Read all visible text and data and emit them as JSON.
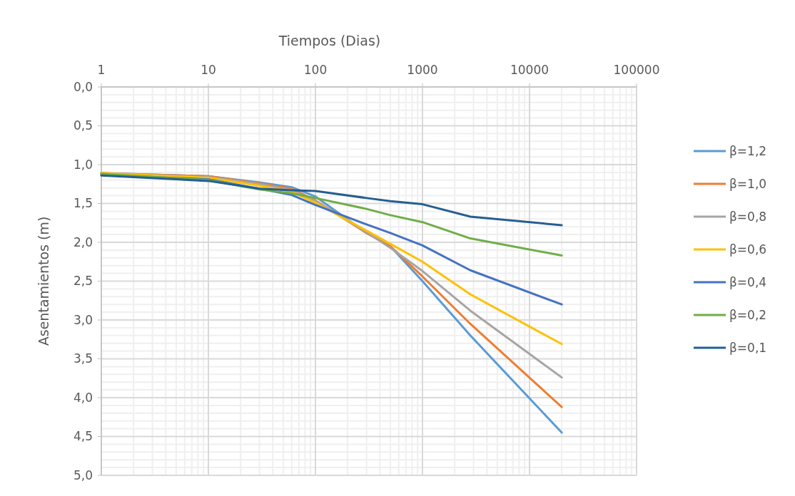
{
  "chart_data": {
    "type": "line",
    "xlabel": "Tiempos (Dias)",
    "ylabel": "Asentamientos (m)",
    "log": "x",
    "grid": true,
    "legend": "right",
    "line_style": "solid",
    "marker": "none",
    "xlim": [
      1,
      100000
    ],
    "xticks": [
      1,
      10,
      100,
      1000,
      10000,
      100000
    ],
    "ylim": [
      5,
      0
    ],
    "yticks": [
      {
        "value": 0,
        "label": "0,0"
      },
      {
        "value": 0.5,
        "label": "0,5"
      },
      {
        "value": 1,
        "label": "1,0"
      },
      {
        "value": 1.5,
        "label": "1,5"
      },
      {
        "value": 2,
        "label": "2,0"
      },
      {
        "value": 2.5,
        "label": "2,5"
      },
      {
        "value": 3,
        "label": "3,0"
      },
      {
        "value": 3.5,
        "label": "3,5"
      },
      {
        "value": 4,
        "label": "4,0"
      },
      {
        "value": 4.5,
        "label": "4,5"
      },
      {
        "value": 5,
        "label": "5,0"
      }
    ],
    "x": [
      1,
      10,
      30,
      60,
      100,
      300,
      500,
      1000,
      2800,
      20000
    ],
    "series": [
      {
        "name": "β=1,2",
        "color": "#5b9bd5",
        "values": [
          1.11,
          1.15,
          1.23,
          1.29,
          1.41,
          1.88,
          2.05,
          2.5,
          3.2,
          4.45
        ]
      },
      {
        "name": "β=1,0",
        "color": "#ed7d31",
        "values": [
          1.11,
          1.15,
          1.24,
          1.31,
          1.46,
          1.88,
          2.05,
          2.44,
          3.05,
          4.12
        ]
      },
      {
        "name": "β=0,8",
        "color": "#a5a5a5",
        "values": [
          1.11,
          1.16,
          1.25,
          1.33,
          1.47,
          1.87,
          2.07,
          2.37,
          2.88,
          3.74
        ]
      },
      {
        "name": "β=0,6",
        "color": "#ffc000",
        "values": [
          1.11,
          1.17,
          1.27,
          1.35,
          1.49,
          1.85,
          2.02,
          2.25,
          2.67,
          3.31
        ]
      },
      {
        "name": "β=0,4",
        "color": "#4472c4",
        "values": [
          1.13,
          1.19,
          1.31,
          1.39,
          1.52,
          1.77,
          1.88,
          2.04,
          2.36,
          2.8
        ]
      },
      {
        "name": "β=0,2",
        "color": "#70ad47",
        "values": [
          1.12,
          1.2,
          1.32,
          1.37,
          1.43,
          1.57,
          1.65,
          1.74,
          1.95,
          2.17
        ]
      },
      {
        "name": "β=0,1",
        "color": "#255e91",
        "values": [
          1.14,
          1.21,
          1.31,
          1.33,
          1.34,
          1.43,
          1.47,
          1.51,
          1.67,
          1.78
        ]
      }
    ]
  }
}
